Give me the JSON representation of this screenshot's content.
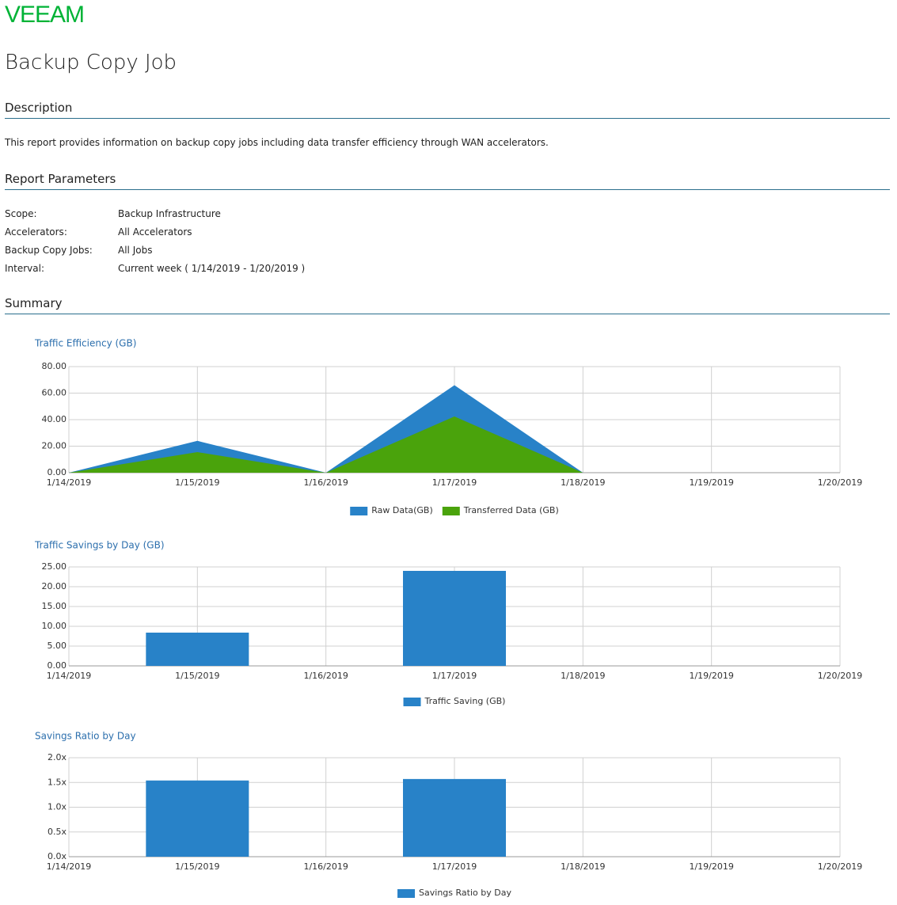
{
  "header": {
    "logo": "VEEAM",
    "title": "Backup Copy Job"
  },
  "sections": {
    "description": {
      "heading": "Description",
      "text": "This report provides information on backup copy jobs including data transfer efficiency through WAN accelerators."
    },
    "parameters": {
      "heading": "Report Parameters",
      "rows": [
        [
          "Scope:",
          "Backup Infrastructure"
        ],
        [
          "Accelerators:",
          "All Accelerators"
        ],
        [
          "Backup Copy Jobs:",
          "All Jobs"
        ],
        [
          "Interval:",
          "Current week   ( 1/14/2019 - 1/20/2019 )"
        ]
      ]
    },
    "summary": {
      "heading": "Summary"
    }
  },
  "chart_data": [
    {
      "type": "area",
      "title": "Traffic Efficiency (GB)",
      "categories": [
        "1/14/2019",
        "1/15/2019",
        "1/16/2019",
        "1/17/2019",
        "1/18/2019",
        "1/19/2019",
        "1/20/2019"
      ],
      "series": [
        {
          "name": "Raw Data(GB)",
          "color": "#2882c8",
          "values": [
            0,
            24,
            0,
            66,
            0,
            0,
            0
          ]
        },
        {
          "name": "Transferred Data (GB)",
          "color": "#4aa30c",
          "values": [
            0,
            15.5,
            0,
            42.4,
            0,
            0,
            0
          ]
        }
      ],
      "ylim": [
        0,
        80
      ],
      "yticks": [
        {
          "value": 0,
          "label": "0.00"
        },
        {
          "value": 20,
          "label": "20.00"
        },
        {
          "value": 40,
          "label": "40.00"
        },
        {
          "value": 60,
          "label": "60.00"
        },
        {
          "value": 80,
          "label": "80.00"
        }
      ],
      "grid": true
    },
    {
      "type": "bar",
      "title": "Traffic Savings by Day (GB)",
      "categories": [
        "1/14/2019",
        "1/15/2019",
        "1/16/2019",
        "1/17/2019",
        "1/18/2019",
        "1/19/2019",
        "1/20/2019"
      ],
      "series": [
        {
          "name": "Traffic Saving (GB)",
          "color": "#2882c8",
          "values": [
            0,
            8.4,
            0,
            24,
            0,
            0,
            0
          ]
        }
      ],
      "ylim": [
        0,
        25
      ],
      "yticks": [
        {
          "value": 0,
          "label": "0.00"
        },
        {
          "value": 5,
          "label": "5.00"
        },
        {
          "value": 10,
          "label": "10.00"
        },
        {
          "value": 15,
          "label": "15.00"
        },
        {
          "value": 20,
          "label": "20.00"
        },
        {
          "value": 25,
          "label": "25.00"
        }
      ],
      "grid": true
    },
    {
      "type": "bar",
      "title": "Savings Ratio by Day",
      "categories": [
        "1/14/2019",
        "1/15/2019",
        "1/16/2019",
        "1/17/2019",
        "1/18/2019",
        "1/19/2019",
        "1/20/2019"
      ],
      "series": [
        {
          "name": "Savings Ratio by Day",
          "color": "#2882c8",
          "values": [
            0,
            1.54,
            0,
            1.57,
            0,
            0,
            0
          ]
        }
      ],
      "ylim": [
        0,
        2
      ],
      "yticks": [
        {
          "value": 0,
          "label": "0.0x"
        },
        {
          "value": 0.5,
          "label": "0.5x"
        },
        {
          "value": 1,
          "label": "1.0x"
        },
        {
          "value": 1.5,
          "label": "1.5x"
        },
        {
          "value": 2,
          "label": "2.0x"
        }
      ],
      "grid": true
    }
  ]
}
